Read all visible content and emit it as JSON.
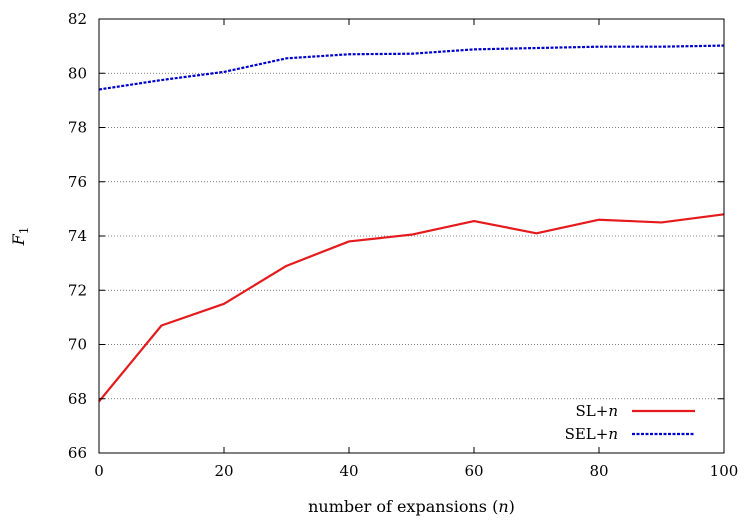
{
  "chart_data": {
    "type": "line",
    "xlabel": "number of expansions (n)",
    "ylabel": "F1",
    "xlim": [
      0,
      100
    ],
    "ylim": [
      66,
      82
    ],
    "x_ticks": [
      0,
      20,
      40,
      60,
      80,
      100
    ],
    "y_ticks": [
      66,
      68,
      70,
      72,
      74,
      76,
      78,
      80,
      82
    ],
    "grid": "horizontal dotted",
    "legend_position": "bottom-right",
    "x": [
      0,
      10,
      20,
      30,
      40,
      50,
      60,
      70,
      80,
      90,
      100
    ],
    "series": [
      {
        "name": "SL+n",
        "color": "#e41a1c",
        "dash": "solid",
        "values": [
          67.9,
          70.7,
          71.5,
          72.9,
          73.8,
          74.05,
          74.55,
          74.1,
          74.6,
          74.5,
          74.8
        ]
      },
      {
        "name": "SEL+n",
        "color": "#0000cc",
        "dash": "dotted",
        "values": [
          79.4,
          79.75,
          80.05,
          80.55,
          80.7,
          80.72,
          80.88,
          80.93,
          80.98,
          80.98,
          81.02
        ]
      }
    ]
  }
}
